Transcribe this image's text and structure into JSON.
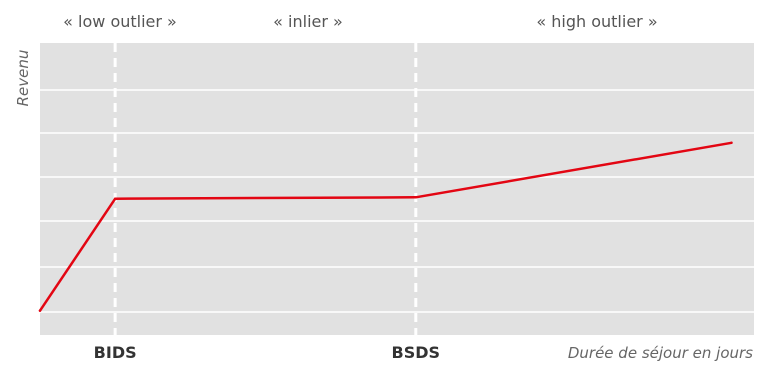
{
  "chart_data": {
    "type": "line",
    "ylabel": "Revenu",
    "xlabel": "Durée de séjour en jours",
    "regions": [
      {
        "label": "« low outlier »"
      },
      {
        "label": "« inlier »"
      },
      {
        "label": "« high outlier »"
      }
    ],
    "markers": [
      {
        "label": "BIDS",
        "x": 1
      },
      {
        "label": "BSDS",
        "x": 5
      }
    ],
    "xlim": [
      0,
      9.5
    ],
    "ylim": [
      0,
      6
    ],
    "grid": true,
    "series": [
      {
        "color": "#e30613",
        "points": [
          [
            0,
            0.5
          ],
          [
            1,
            2.8
          ],
          [
            5,
            2.83
          ],
          [
            9.2,
            3.95
          ]
        ]
      }
    ],
    "colors": {
      "plot_background": "#e1e1e1",
      "grid": "#ffffff",
      "line": "#e30613",
      "marker_line": "#ffffff"
    }
  }
}
